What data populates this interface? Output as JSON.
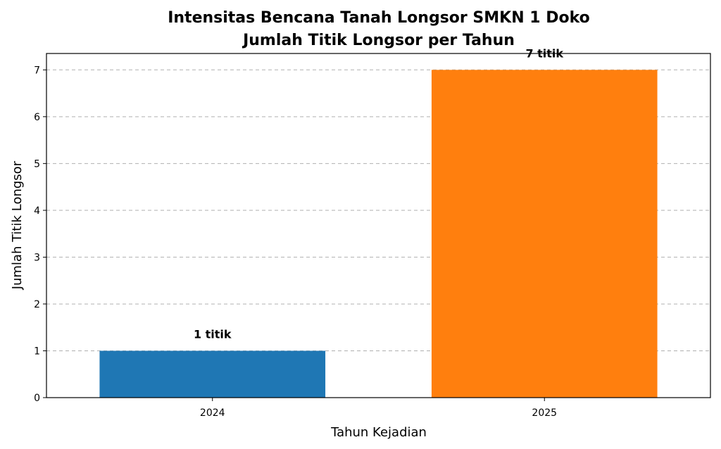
{
  "chart_data": {
    "type": "bar",
    "title_line1": "Intensitas Bencana Tanah Longsor SMKN 1 Doko",
    "title_line2": "Jumlah Titik Longsor per Tahun",
    "xlabel": "Tahun Kejadian",
    "ylabel": "Jumlah Titik Longsor",
    "categories": [
      "2024",
      "2025"
    ],
    "values": [
      1,
      7
    ],
    "data_labels": [
      "1 titik",
      "7 titik"
    ],
    "colors": [
      "#1f77b4",
      "#ff7f0e"
    ],
    "ylim": [
      0,
      7.35
    ],
    "yticks": [
      0,
      1,
      2,
      3,
      4,
      5,
      6,
      7
    ],
    "grid": true
  }
}
